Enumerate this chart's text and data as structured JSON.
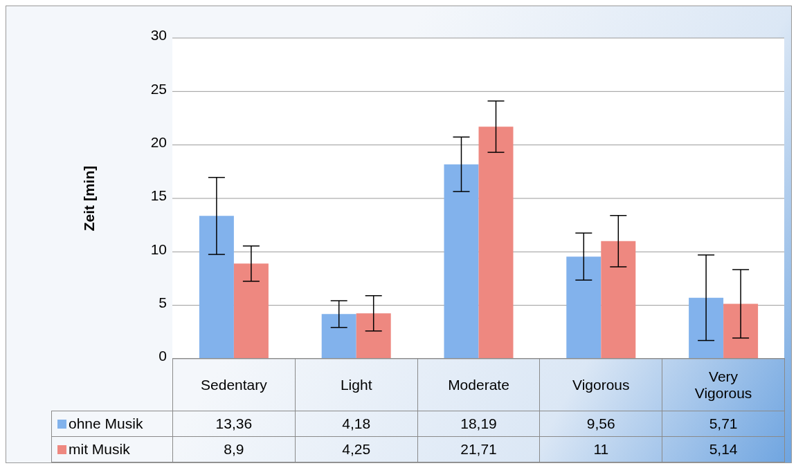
{
  "chart_data": {
    "type": "bar",
    "ylabel": "Zeit [min]",
    "categories": [
      "Sedentary",
      "Light",
      "Moderate",
      "Vigorous",
      "Very Vigorous"
    ],
    "series": [
      {
        "name": "ohne Musik",
        "color": "#82b2ec",
        "values": [
          13.36,
          4.18,
          18.19,
          9.56,
          5.71
        ],
        "errors": [
          3.6,
          1.25,
          2.55,
          2.2,
          4
        ],
        "value_labels": [
          "13,36",
          "4,18",
          "18,19",
          "9,56",
          "5,71"
        ]
      },
      {
        "name": "mit Musik",
        "color": "#ee8880",
        "values": [
          8.9,
          4.25,
          21.71,
          11,
          5.14
        ],
        "errors": [
          1.65,
          1.65,
          2.4,
          2.4,
          3.2
        ],
        "value_labels": [
          "8,9",
          "4,25",
          "21,71",
          "11",
          "5,14"
        ]
      }
    ],
    "ylim": [
      0,
      30
    ],
    "yticks": [
      0,
      5,
      10,
      15,
      20,
      25,
      30
    ],
    "grid": "y",
    "legend": "bottom"
  }
}
